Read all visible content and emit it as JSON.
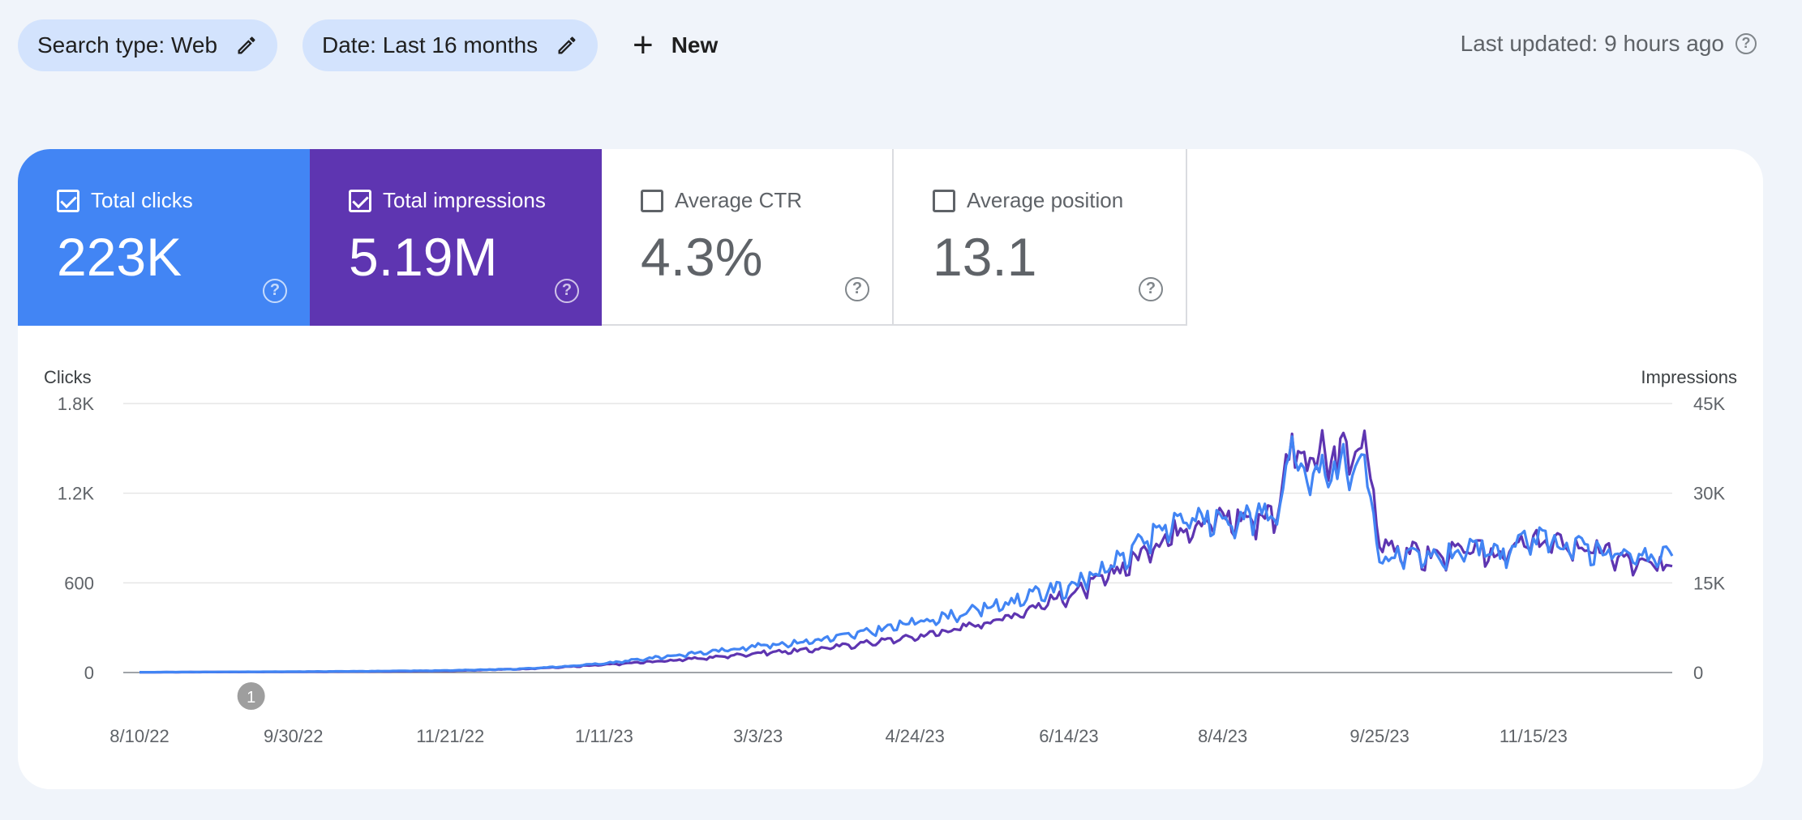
{
  "filters": {
    "search_type": "Search type: Web",
    "date": "Date: Last 16 months",
    "new_label": "New"
  },
  "status": {
    "last_updated": "Last updated: 9 hours ago"
  },
  "metrics": [
    {
      "label": "Total clicks",
      "value": "223K",
      "checked": true,
      "color": "#4285f4"
    },
    {
      "label": "Total impressions",
      "value": "5.19M",
      "checked": true,
      "color": "#5e35b1"
    },
    {
      "label": "Average CTR",
      "value": "4.3%",
      "checked": false
    },
    {
      "label": "Average position",
      "value": "13.1",
      "checked": false
    }
  ],
  "chart_data": {
    "type": "line",
    "left_axis_label": "Clicks",
    "right_axis_label": "Impressions",
    "left_ticks": [
      "0",
      "600",
      "1.2K",
      "1.8K"
    ],
    "left_tick_values": [
      0,
      600,
      1200,
      1800
    ],
    "right_ticks": [
      "0",
      "15K",
      "30K",
      "45K"
    ],
    "right_tick_values": [
      0,
      15000,
      30000,
      45000
    ],
    "left_ylim": [
      0,
      1800
    ],
    "right_ylim": [
      0,
      45000
    ],
    "x_tick_labels": [
      "8/10/22",
      "9/30/22",
      "11/21/22",
      "1/11/23",
      "3/3/23",
      "4/24/23",
      "6/14/23",
      "8/4/23",
      "9/25/23",
      "11/15/23"
    ],
    "x_tick_dates": [
      "2022-08-10",
      "2022-09-30",
      "2022-11-21",
      "2023-01-11",
      "2023-03-03",
      "2023-04-24",
      "2023-06-14",
      "2023-08-04",
      "2023-09-25",
      "2023-11-15"
    ],
    "x_range": [
      "2022-08-10",
      "2023-12-31"
    ],
    "annotation": {
      "label": "1",
      "date": "2022-09-16"
    },
    "grid": true,
    "series": [
      {
        "name": "Clicks",
        "axis": "left",
        "color": "#4285f4",
        "points": [
          [
            "2022-08-10",
            2
          ],
          [
            "2022-09-01",
            4
          ],
          [
            "2022-10-01",
            6
          ],
          [
            "2022-11-01",
            10
          ],
          [
            "2022-11-21",
            14
          ],
          [
            "2022-12-15",
            25
          ],
          [
            "2023-01-01",
            45
          ],
          [
            "2023-01-11",
            60
          ],
          [
            "2023-02-01",
            110
          ],
          [
            "2023-02-15",
            140
          ],
          [
            "2023-03-03",
            180
          ],
          [
            "2023-03-20",
            210
          ],
          [
            "2023-04-05",
            260
          ],
          [
            "2023-04-24",
            340
          ],
          [
            "2023-05-10",
            400
          ],
          [
            "2023-05-25",
            470
          ],
          [
            "2023-06-01",
            520
          ],
          [
            "2023-06-14",
            580
          ],
          [
            "2023-06-25",
            680
          ],
          [
            "2023-07-05",
            820
          ],
          [
            "2023-07-15",
            960
          ],
          [
            "2023-07-25",
            1050
          ],
          [
            "2023-08-04",
            1020
          ],
          [
            "2023-08-15",
            1060
          ],
          [
            "2023-08-22",
            1080
          ],
          [
            "2023-08-27",
            1500
          ],
          [
            "2023-09-02",
            1200
          ],
          [
            "2023-09-05",
            1530
          ],
          [
            "2023-09-08",
            1180
          ],
          [
            "2023-09-12",
            1540
          ],
          [
            "2023-09-15",
            1250
          ],
          [
            "2023-09-19",
            1530
          ],
          [
            "2023-09-21",
            1300
          ],
          [
            "2023-09-25",
            780
          ],
          [
            "2023-10-10",
            760
          ],
          [
            "2023-10-25",
            820
          ],
          [
            "2023-11-05",
            800
          ],
          [
            "2023-11-15",
            900
          ],
          [
            "2023-11-25",
            860
          ],
          [
            "2023-12-10",
            820
          ],
          [
            "2023-12-20",
            760
          ],
          [
            "2023-12-31",
            780
          ]
        ]
      },
      {
        "name": "Impressions",
        "axis": "right",
        "color": "#5e35b1",
        "points": [
          [
            "2022-08-10",
            50
          ],
          [
            "2022-09-01",
            80
          ],
          [
            "2022-10-01",
            120
          ],
          [
            "2022-11-01",
            200
          ],
          [
            "2022-11-21",
            300
          ],
          [
            "2022-12-15",
            600
          ],
          [
            "2023-01-01",
            1000
          ],
          [
            "2023-01-11",
            1300
          ],
          [
            "2023-02-01",
            2000
          ],
          [
            "2023-02-15",
            2500
          ],
          [
            "2023-03-03",
            3300
          ],
          [
            "2023-03-20",
            3800
          ],
          [
            "2023-04-05",
            4800
          ],
          [
            "2023-04-24",
            6000
          ],
          [
            "2023-05-10",
            7600
          ],
          [
            "2023-05-25",
            9400
          ],
          [
            "2023-06-01",
            10800
          ],
          [
            "2023-06-14",
            13000
          ],
          [
            "2023-06-25",
            15500
          ],
          [
            "2023-07-05",
            18800
          ],
          [
            "2023-07-15",
            22500
          ],
          [
            "2023-07-25",
            25500
          ],
          [
            "2023-08-04",
            25800
          ],
          [
            "2023-08-15",
            26000
          ],
          [
            "2023-08-22",
            27000
          ],
          [
            "2023-08-27",
            40000
          ],
          [
            "2023-09-02",
            33000
          ],
          [
            "2023-09-05",
            40000
          ],
          [
            "2023-09-08",
            32000
          ],
          [
            "2023-09-12",
            40000
          ],
          [
            "2023-09-15",
            34000
          ],
          [
            "2023-09-19",
            40000
          ],
          [
            "2023-09-21",
            36000
          ],
          [
            "2023-09-25",
            22000
          ],
          [
            "2023-10-10",
            19500
          ],
          [
            "2023-10-25",
            20500
          ],
          [
            "2023-11-05",
            20000
          ],
          [
            "2023-11-15",
            22000
          ],
          [
            "2023-11-25",
            21500
          ],
          [
            "2023-12-10",
            20000
          ],
          [
            "2023-12-20",
            18000
          ],
          [
            "2023-12-31",
            17800
          ]
        ]
      }
    ]
  }
}
